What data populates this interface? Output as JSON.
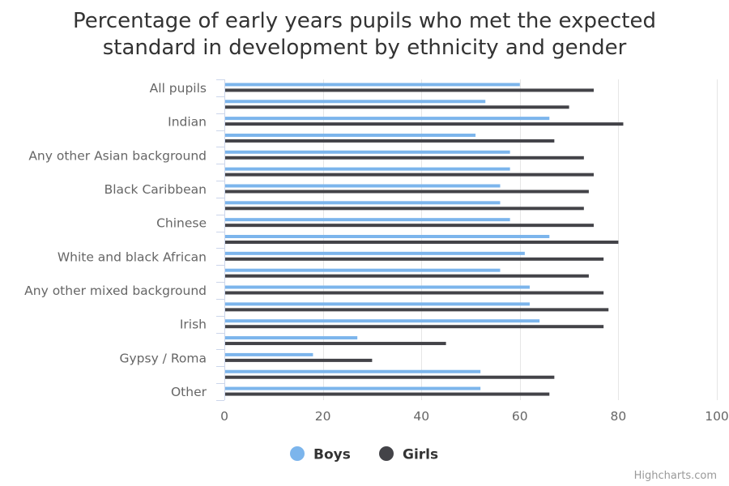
{
  "chart_data": {
    "type": "bar",
    "orientation": "horizontal",
    "title_lines": [
      "Percentage of early years pupils who met the expected",
      "standard in development by ethnicity and gender"
    ],
    "categories": [
      "All pupils",
      "",
      "Indian",
      "",
      "Any other Asian background",
      "",
      "Black Caribbean",
      "",
      "Chinese",
      "",
      "White and black African",
      "",
      "Any other mixed background",
      "",
      "Irish",
      "",
      "Gypsy / Roma",
      "",
      "Other"
    ],
    "series": [
      {
        "name": "Boys",
        "color": "#7cb5ec",
        "values": [
          60,
          53,
          66,
          51,
          58,
          58,
          56,
          56,
          58,
          66,
          61,
          56,
          62,
          62,
          64,
          27,
          18,
          52,
          52
        ]
      },
      {
        "name": "Girls",
        "color": "#434348",
        "values": [
          75,
          70,
          81,
          67,
          73,
          75,
          74,
          73,
          75,
          80,
          77,
          74,
          77,
          78,
          77,
          45,
          30,
          67,
          66
        ]
      }
    ],
    "xlim": [
      0,
      100
    ],
    "ticks": [
      "0",
      "20",
      "40",
      "60",
      "80",
      "100"
    ],
    "grid": true,
    "legend_position": "bottom-center"
  },
  "credits": "Highcharts.com"
}
